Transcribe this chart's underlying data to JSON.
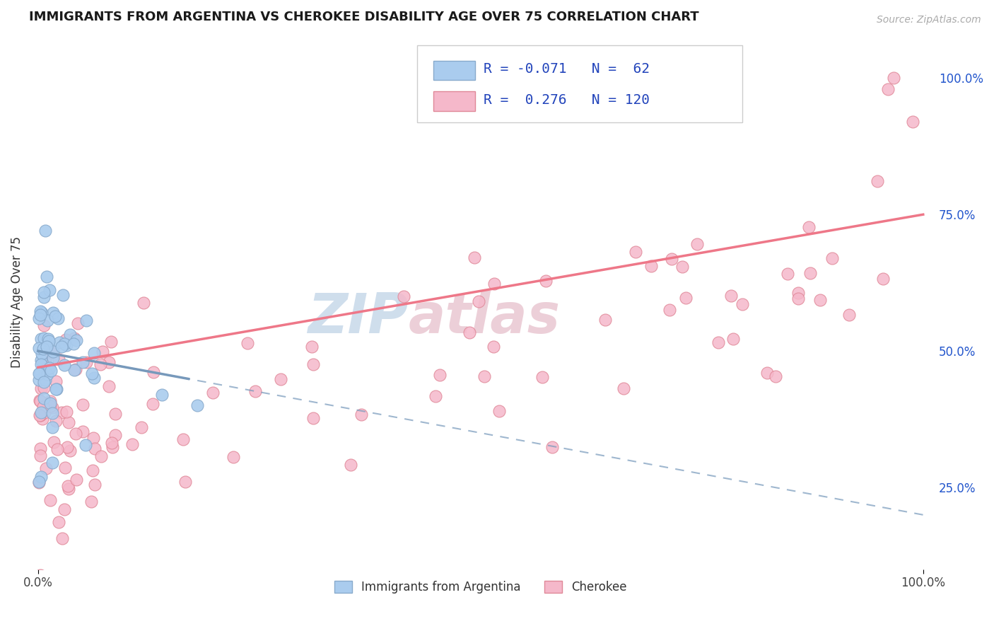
{
  "title": "IMMIGRANTS FROM ARGENTINA VS CHEROKEE DISABILITY AGE OVER 75 CORRELATION CHART",
  "source": "Source: ZipAtlas.com",
  "ylabel": "Disability Age Over 75",
  "right_yticklabels": [
    "25.0%",
    "50.0%",
    "75.0%",
    "100.0%"
  ],
  "right_ytick_vals": [
    0.25,
    0.5,
    0.75,
    1.0
  ],
  "legend_labels": [
    "Immigrants from Argentina",
    "Cherokee"
  ],
  "legend_R": [
    -0.071,
    0.276
  ],
  "legend_N": [
    62,
    120
  ],
  "blue_color": "#aaccee",
  "blue_edge": "#88aacc",
  "pink_color": "#f5b8ca",
  "pink_edge": "#e08898",
  "blue_line_color": "#7799bb",
  "pink_line_color": "#ee7788",
  "title_color": "#1a1a1a",
  "source_color": "#aaaaaa",
  "legend_num_color": "#2244bb",
  "background_color": "#ffffff",
  "grid_color": "#e8e8e8",
  "ymin": 0.1,
  "ymax": 1.08,
  "xmin": -0.01,
  "xmax": 1.01
}
